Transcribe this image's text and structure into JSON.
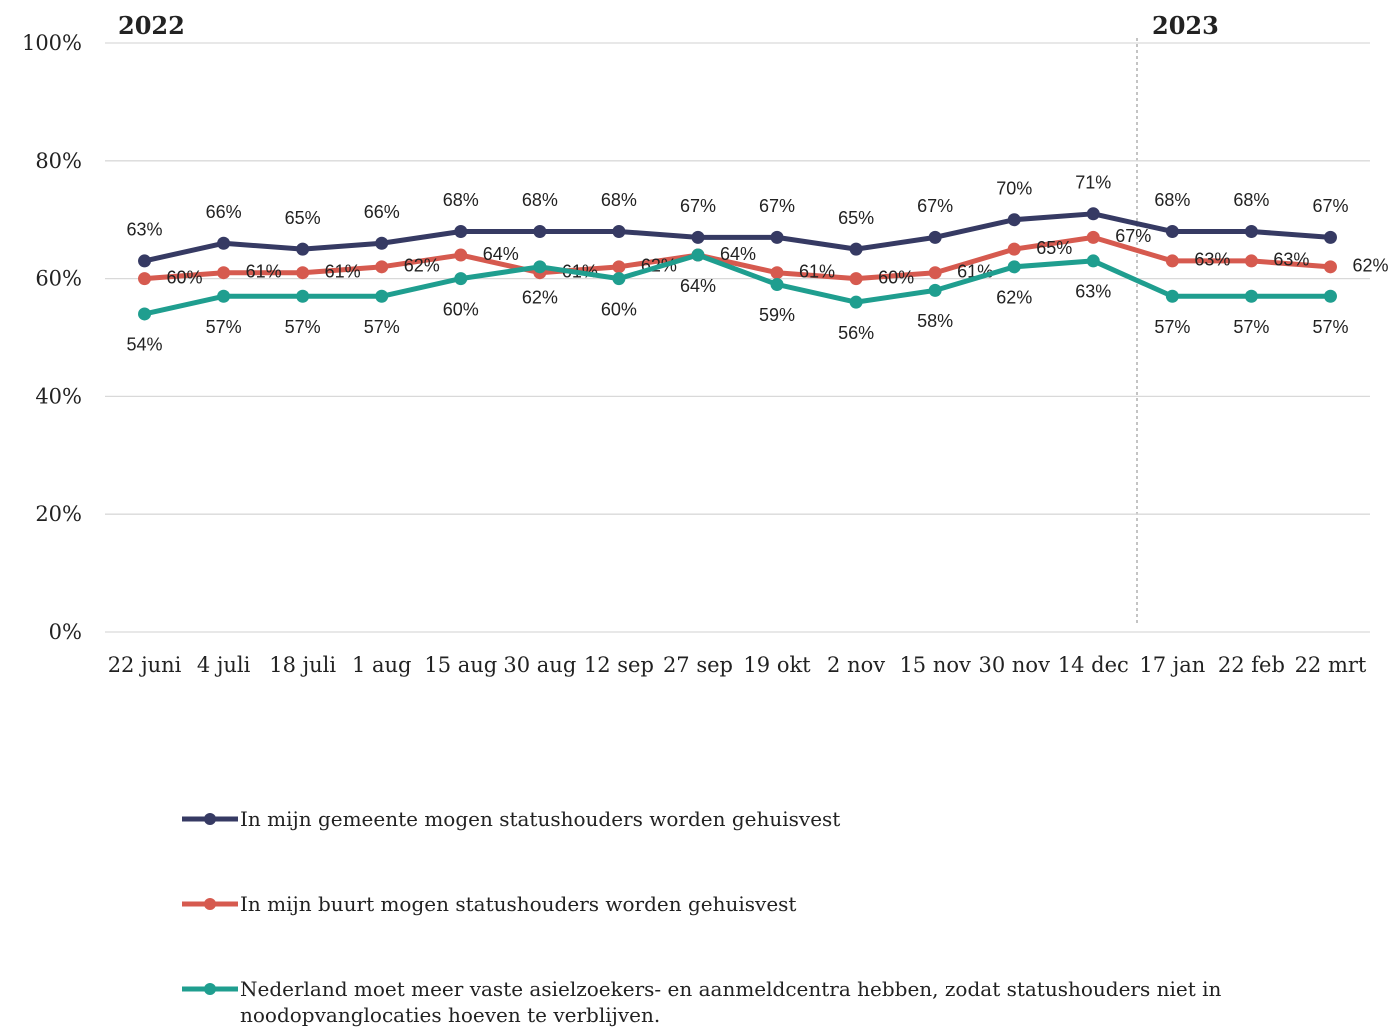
{
  "chart_data": {
    "type": "line",
    "annotations": [
      "2022",
      "2023"
    ],
    "categories": [
      "22 juni",
      "4 juli",
      "18 juli",
      "1 aug",
      "15 aug",
      "30 aug",
      "12 sep",
      "27 sep",
      "19 okt",
      "2 nov",
      "15 nov",
      "30 nov",
      "14 dec",
      "17 jan",
      "22 feb",
      "22 mrt"
    ],
    "ylim": [
      0,
      100
    ],
    "yticks": [
      {
        "value": 0,
        "label": "0%"
      },
      {
        "value": 20,
        "label": "20%"
      },
      {
        "value": 40,
        "label": "40%"
      },
      {
        "value": 60,
        "label": "60%"
      },
      {
        "value": 80,
        "label": "80%"
      },
      {
        "value": 100,
        "label": "100%"
      }
    ],
    "grid": true,
    "series": [
      {
        "name": "In mijn gemeente mogen statushouders worden gehuisvest",
        "color": "#363a63",
        "values": [
          63,
          66,
          65,
          66,
          68,
          68,
          68,
          67,
          67,
          65,
          67,
          70,
          71,
          68,
          68,
          67
        ],
        "value_labels": [
          "63%",
          "66%",
          "65%",
          "66%",
          "68%",
          "68%",
          "68%",
          "67%",
          "67%",
          "65%",
          "67%",
          "70%",
          "71%",
          "68%",
          "68%",
          "67%"
        ]
      },
      {
        "name": "In mijn buurt mogen statushouders worden gehuisvest",
        "color": "#d65a4f",
        "values": [
          60,
          61,
          61,
          62,
          64,
          61,
          62,
          64,
          61,
          60,
          61,
          65,
          67,
          63,
          63,
          62
        ],
        "value_labels": [
          "60%",
          "61%",
          "61%",
          "62%",
          "64%",
          "61%",
          "62%",
          "64%",
          "61%",
          "60%",
          "61%",
          "65%",
          "67%",
          "63%",
          "63%",
          "62%"
        ]
      },
      {
        "name": "Nederland moet meer vaste asielzoekers- en aanmeldcentra hebben, zodat statushouders niet in noodopvanglocaties hoeven te verblijven.",
        "color": "#1f9e8f",
        "values": [
          54,
          57,
          57,
          57,
          60,
          62,
          60,
          64,
          59,
          56,
          58,
          62,
          63,
          57,
          57,
          57
        ],
        "value_labels": [
          "54%",
          "57%",
          "57%",
          "57%",
          "60%",
          "62%",
          "60%",
          "64%",
          "59%",
          "56%",
          "58%",
          "62%",
          "63%",
          "57%",
          "57%",
          "57%"
        ]
      }
    ]
  }
}
